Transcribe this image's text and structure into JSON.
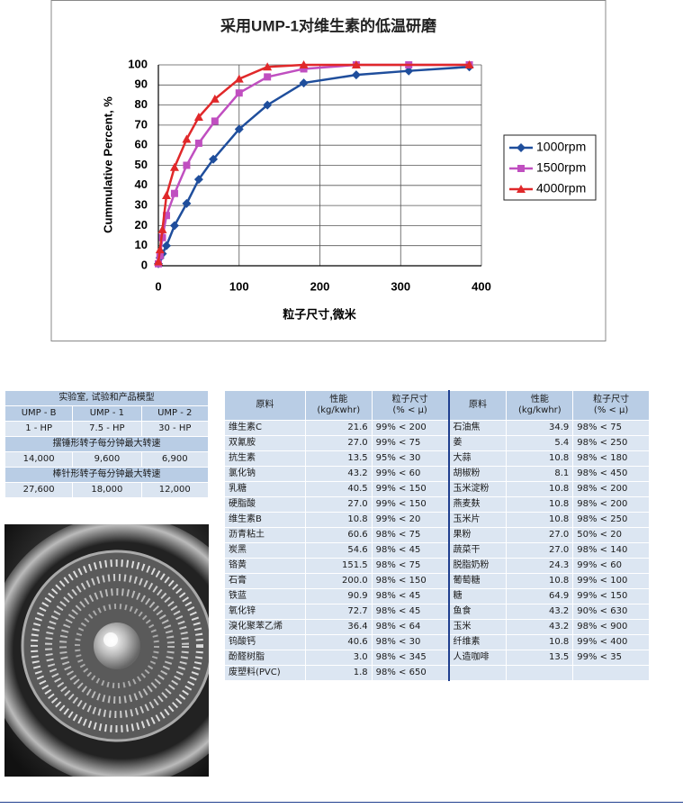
{
  "chart_data": {
    "type": "line",
    "title": "采用UMP-1对维生素的低温研磨",
    "xlabel": "粒子尺寸,微米",
    "ylabel": "Cummulative Percent, %",
    "xlim": [
      0,
      400
    ],
    "xticks": [
      0,
      100,
      200,
      300,
      400
    ],
    "ylim": [
      0,
      100
    ],
    "yticks": [
      0,
      10,
      20,
      30,
      40,
      50,
      60,
      70,
      80,
      90,
      100
    ],
    "grid": true,
    "legend": "right",
    "series": [
      {
        "name": "1000rpm",
        "color": "#1f4e9c",
        "marker": "diamond",
        "x": [
          0,
          2,
          5,
          10,
          20,
          35,
          50,
          68,
          100,
          135,
          180,
          245,
          310,
          385
        ],
        "values": [
          1,
          4,
          6,
          10,
          20,
          31,
          43,
          53,
          68,
          80,
          91,
          95,
          97,
          99
        ]
      },
      {
        "name": "1500rpm",
        "color": "#c04fc0",
        "marker": "square",
        "x": [
          0,
          2,
          5,
          10,
          20,
          35,
          50,
          70,
          100,
          135,
          180,
          245,
          310,
          385
        ],
        "values": [
          1,
          5,
          14,
          25,
          36,
          50,
          61,
          72,
          86,
          94,
          98,
          100,
          100,
          100
        ]
      },
      {
        "name": "4000rpm",
        "color": "#e0282a",
        "marker": "triangle",
        "x": [
          0,
          2,
          5,
          10,
          20,
          35,
          50,
          70,
          100,
          135,
          180,
          245,
          385
        ],
        "values": [
          2,
          8,
          18,
          35,
          49,
          63,
          74,
          83,
          93,
          99,
          100,
          100,
          100
        ]
      }
    ]
  },
  "spec_table": {
    "title": "实验室, 试验和产品模型",
    "models": [
      "UMP - B",
      "UMP - 1",
      "UMP - 2"
    ],
    "power": [
      "1 - HP",
      "7.5 - HP",
      "30 - HP"
    ],
    "hammer_title": "摆锤形转子每分钟最大转速",
    "hammer_rpm": [
      "14,000",
      "9,600",
      "6,900"
    ],
    "pin_title": "棒针形转子每分钟最大转速",
    "pin_rpm": [
      "27,600",
      "18,000",
      "12,000"
    ]
  },
  "material_table": {
    "header": [
      [
        "原料"
      ],
      [
        "性能",
        "(kg/kwhr)"
      ],
      [
        "粒子尺寸",
        "(% < μ)"
      ],
      [
        "原料"
      ],
      [
        "性能",
        "(kg/kwhr)"
      ],
      [
        "粒子尺寸",
        "(% < μ)"
      ]
    ],
    "left_rows": [
      [
        "维生素C",
        "21.6",
        "99% < 200"
      ],
      [
        "双氰胺",
        "27.0",
        "99% < 75"
      ],
      [
        "抗生素",
        "13.5",
        "95% < 30"
      ],
      [
        "氯化钠",
        "43.2",
        "99% < 60"
      ],
      [
        "乳糖",
        "40.5",
        "99% < 150"
      ],
      [
        "硬脂酸",
        "27.0",
        "99% < 150"
      ],
      [
        "维生素B",
        "10.8",
        "99% < 20"
      ],
      [
        "沥青粘土",
        "60.6",
        "98% < 75"
      ],
      [
        "炭黑",
        "54.6",
        "98% < 45"
      ],
      [
        "铬黄",
        "151.5",
        "98% < 75"
      ],
      [
        "石膏",
        "200.0",
        "98% < 150"
      ],
      [
        "铁蓝",
        "90.9",
        "98% < 45"
      ],
      [
        "氧化锌",
        "72.7",
        "98% < 45"
      ],
      [
        "溴化聚苯乙烯",
        "36.4",
        "98% < 64"
      ],
      [
        "钨酸钙",
        "40.6",
        "98% < 30"
      ],
      [
        "酚醛树脂",
        "3.0",
        "98% < 345"
      ],
      [
        "废塑料(PVC)",
        "1.8",
        "98% < 650"
      ]
    ],
    "right_rows": [
      [
        "石油焦",
        "34.9",
        "98% < 75"
      ],
      [
        "姜",
        "5.4",
        "98% < 250"
      ],
      [
        "大蒜",
        "10.8",
        "98% < 180"
      ],
      [
        "胡椒粉",
        "8.1",
        "98% < 450"
      ],
      [
        "玉米淀粉",
        "10.8",
        "98% < 200"
      ],
      [
        "燕麦麸",
        "10.8",
        "98% < 200"
      ],
      [
        "玉米片",
        "10.8",
        "98% < 250"
      ],
      [
        "果粉",
        "27.0",
        "50% < 20"
      ],
      [
        "蔬菜干",
        "27.0",
        "98% < 140"
      ],
      [
        "脱脂奶粉",
        "24.3",
        "99% < 60"
      ],
      [
        "葡萄糖",
        "10.8",
        "99% < 100"
      ],
      [
        "糖",
        "64.9",
        "99% < 150"
      ],
      [
        "鱼食",
        "43.2",
        "90% < 630"
      ],
      [
        "玉米",
        "43.2",
        "98% < 900"
      ],
      [
        "纤维素",
        "10.8",
        "99% < 400"
      ],
      [
        "人造咖啡",
        "13.5",
        "99% < 35"
      ]
    ]
  }
}
